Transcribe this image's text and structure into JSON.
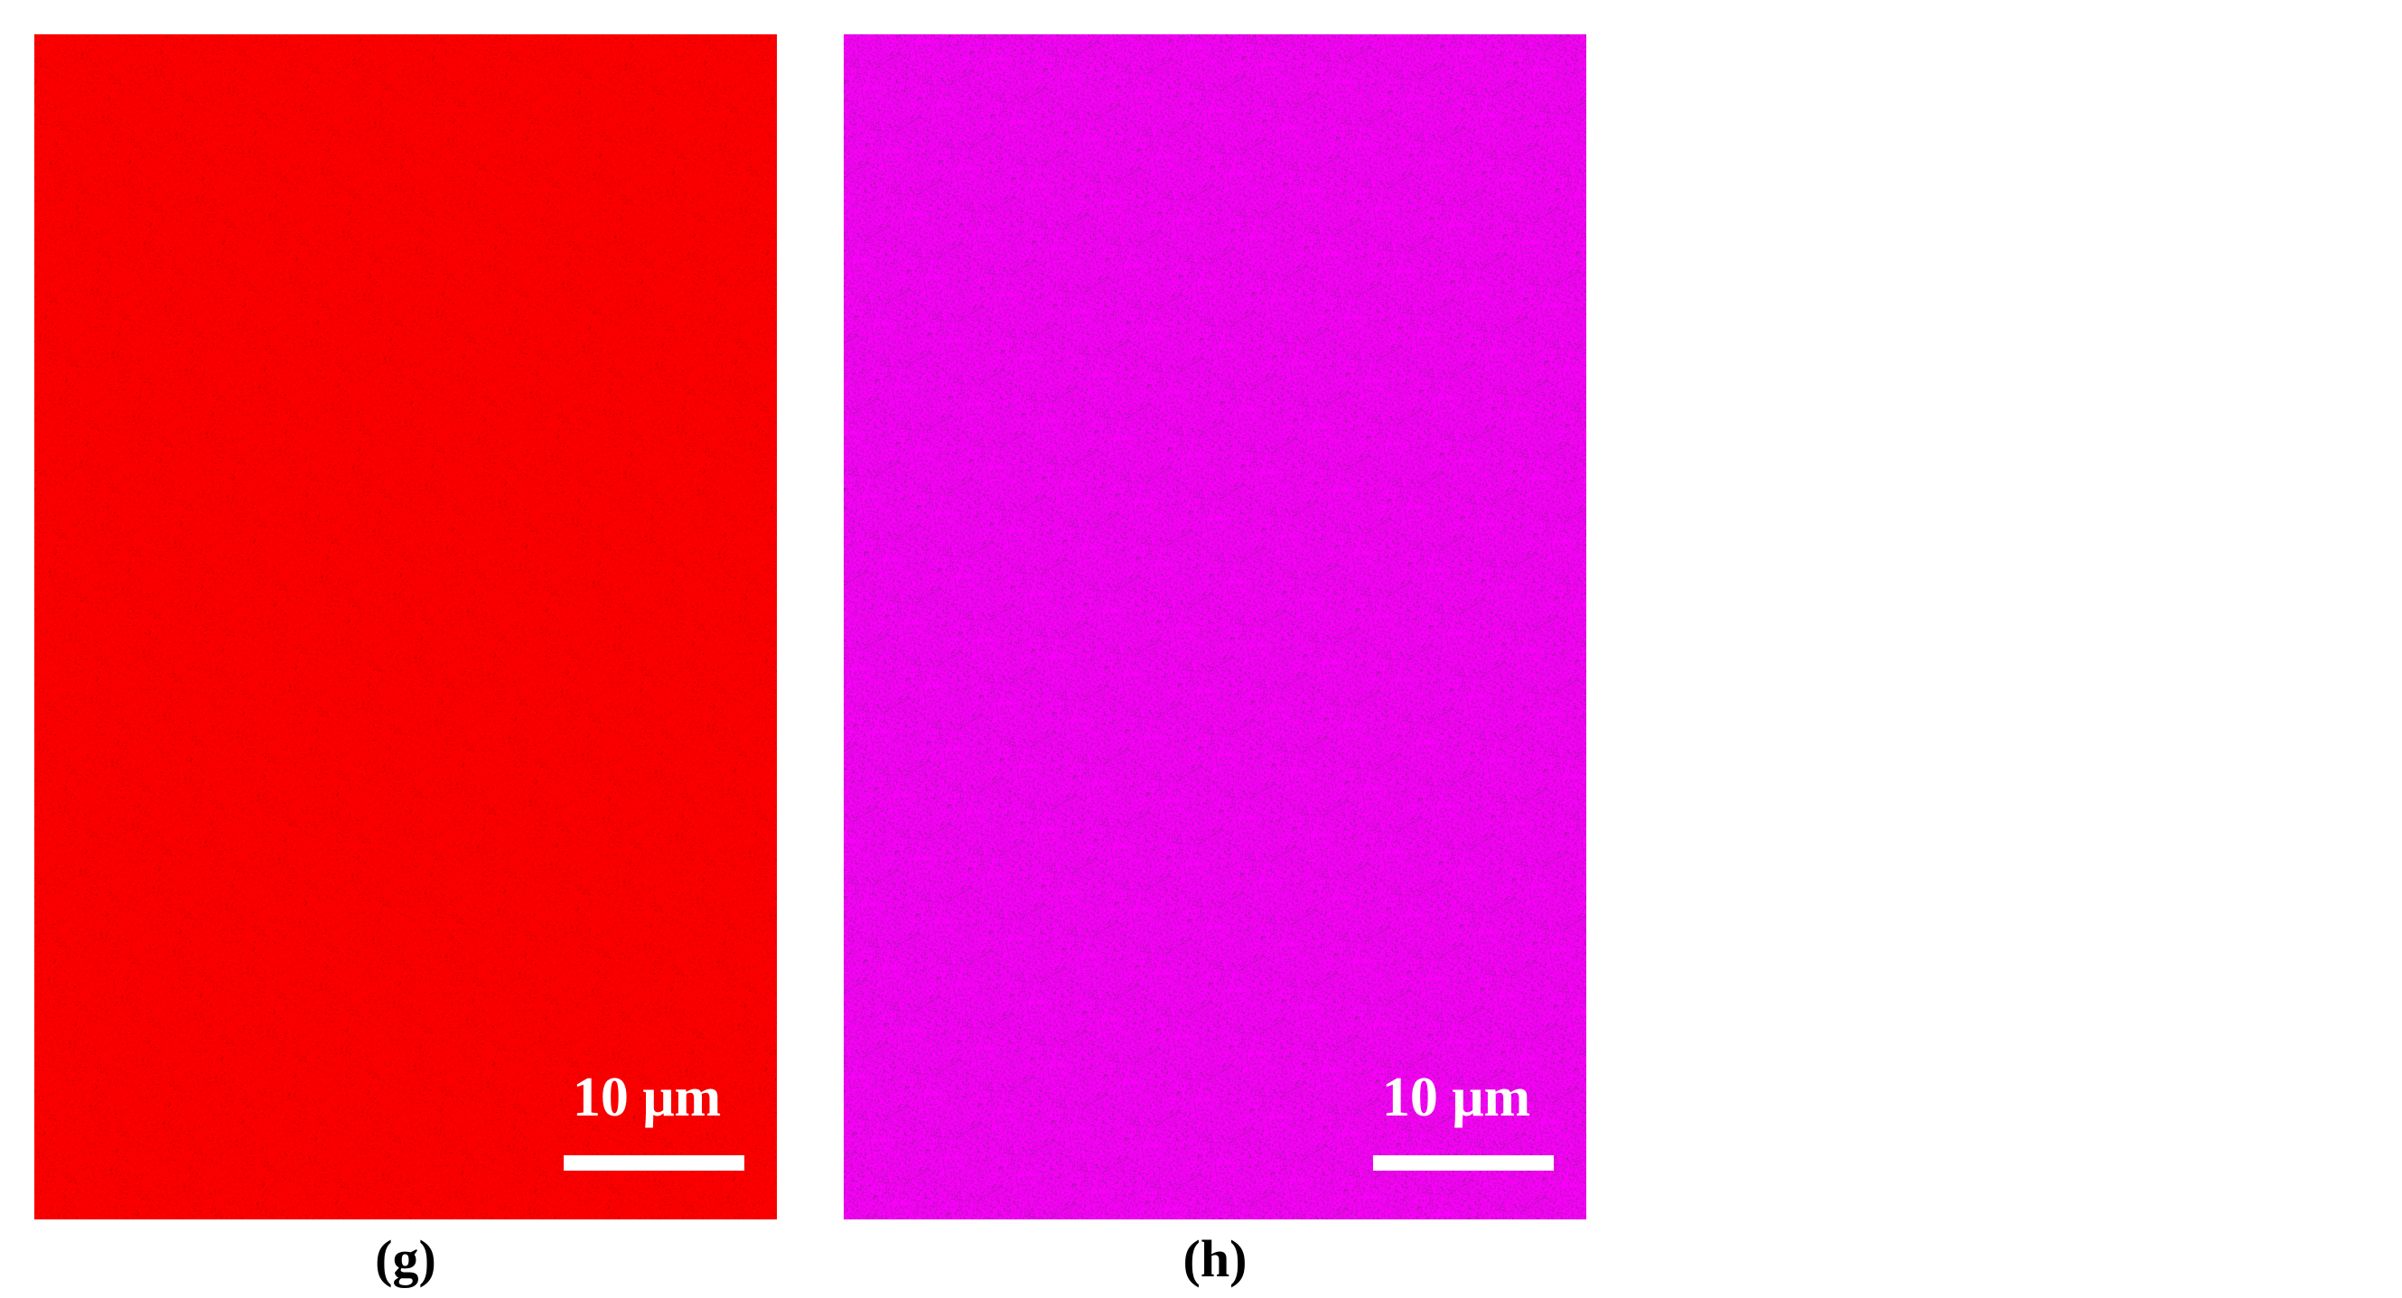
{
  "panels": [
    {
      "id": "g",
      "caption": "(g)",
      "scale_bar_label": "10 μm",
      "map_color": "#ff0000",
      "noise_color": "#b00000"
    },
    {
      "id": "h",
      "caption": "(h)",
      "scale_bar_label": "10 μm",
      "map_color": "#ff00ff",
      "noise_color": "#8a1f8a"
    }
  ]
}
